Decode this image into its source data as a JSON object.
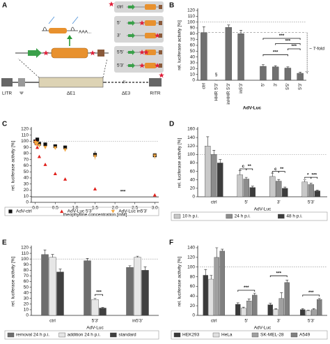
{
  "diagram": {
    "label": "A",
    "poly_a": "AAA...",
    "genome": [
      "LITR",
      "Ψ",
      "ΔE1",
      "ΔE3",
      "RITR"
    ],
    "constructs": [
      "ctrl",
      "5'",
      "3'",
      "5'5'",
      "5'3'"
    ]
  },
  "chart_data": [
    {
      "label": "B",
      "type": "bar",
      "y_label": "rel. luciferase activity [%]",
      "x_label": "AdV-Luc",
      "categories": [
        "ctrl",
        "HHR 5'3'",
        "inHHR 5'3'",
        "in5'3'",
        "5'",
        "3'",
        "5'5'",
        "5'3'"
      ],
      "series": [
        {
          "color": "#707070",
          "values": [
            82,
            0,
            91,
            80,
            24,
            23,
            21,
            12
          ],
          "errors": [
            10,
            0,
            4,
            6,
            3,
            2,
            2,
            2
          ]
        }
      ],
      "ylim": [
        0,
        120
      ],
      "yticks": [
        0,
        10,
        20,
        30,
        40,
        50,
        60,
        70,
        80,
        90,
        100,
        110,
        120
      ],
      "reference_lines": [
        100,
        82
      ],
      "annotations": [
        "§",
        "***",
        "***",
        "***",
        "***",
        "~ 7-fold"
      ]
    },
    {
      "label": "C",
      "type": "scatter",
      "y_label": "rel. luciferase activity [%]",
      "x_label": "theophylline concentration [mM]",
      "x": [
        0,
        0.025,
        0.05,
        0.1,
        0.25,
        0.5,
        0.75,
        1.5,
        3.0
      ],
      "series": [
        {
          "name": "AdV-ctrl",
          "color": "#111111",
          "marker": "square",
          "values": [
            100,
            98,
            103,
            96,
            95,
            92,
            90,
            78,
            77
          ],
          "errors": [
            3,
            3,
            3,
            3,
            3,
            3,
            3,
            6,
            4
          ]
        },
        {
          "name": "AdV-Luc 5'3'",
          "color": "#e0201b",
          "marker": "triangle",
          "values": [
            100,
            96,
            90,
            75,
            62,
            47,
            38,
            22,
            12
          ],
          "errors": [
            3,
            2,
            2,
            2,
            2,
            2,
            2,
            2,
            2
          ]
        },
        {
          "name": "AdV-Luc in5'3'",
          "color": "#f2a640",
          "marker": "triangle-down",
          "values": [
            98,
            95,
            97,
            93,
            90,
            89,
            86,
            75,
            76
          ],
          "errors": [
            4,
            3,
            3,
            3,
            3,
            3,
            3,
            5,
            5
          ]
        }
      ],
      "xlim": [
        -0.1,
        3.1
      ],
      "xticks": [
        {
          "value": 0,
          "label": "0.0"
        },
        0.5,
        {
          "value": 1,
          "label": "1.0"
        },
        1.5,
        {
          "value": 2,
          "label": "2.0"
        },
        2.5,
        {
          "value": 3,
          "label": "3.0"
        }
      ],
      "ylim": [
        0,
        120
      ],
      "yticks": [
        0,
        10,
        20,
        30,
        40,
        50,
        60,
        70,
        80,
        90,
        100,
        110,
        120
      ],
      "reference_lines": [
        100,
        9
      ],
      "annotations": [
        "***"
      ]
    },
    {
      "label": "D",
      "type": "bar",
      "y_label": "rel. luciferase activity [%]",
      "x_label": "AdV-Luc",
      "categories": [
        "ctrl",
        "5'",
        "3'",
        "5'3'"
      ],
      "series": [
        {
          "name": "10 h p.i.",
          "color": "#c8c8c8",
          "values": [
            120,
            52,
            48,
            35
          ],
          "errors": [
            22,
            10,
            8,
            5
          ]
        },
        {
          "name": "24 h p.i.",
          "color": "#8c8c8c",
          "values": [
            100,
            42,
            37,
            29
          ],
          "errors": [
            10,
            4,
            4,
            3
          ]
        },
        {
          "name": "48 h p.i.",
          "color": "#3c3c3c",
          "values": [
            80,
            22,
            20,
            14
          ],
          "errors": [
            8,
            3,
            3,
            2
          ]
        }
      ],
      "ylim": [
        0,
        160
      ],
      "yticks": [
        0,
        20,
        40,
        60,
        80,
        100,
        120,
        140,
        160
      ],
      "reference_lines": [
        100
      ],
      "annotations": [
        "c",
        "**",
        "c",
        "**",
        "*",
        "***"
      ]
    },
    {
      "label": "E",
      "type": "bar",
      "y_label": "rel. luciferase activity [%]",
      "x_label": "AdV-Luc",
      "categories": [
        "ctrl",
        "5'3'",
        "in5'3'"
      ],
      "series": [
        {
          "name": "removal 24 h p.i.",
          "color": "#6e6e6e",
          "values": [
            108,
            97,
            85
          ],
          "errors": [
            8,
            4,
            3
          ]
        },
        {
          "name": "addition 24 h p.i.",
          "color": "#e6e6e6",
          "values": [
            103,
            28,
            103
          ],
          "errors": [
            5,
            2,
            2
          ]
        },
        {
          "name": "standard",
          "color": "#404040",
          "values": [
            77,
            13,
            80
          ],
          "errors": [
            5,
            1,
            6
          ]
        }
      ],
      "ylim": [
        0,
        120
      ],
      "yticks": [
        0,
        10,
        20,
        30,
        40,
        50,
        60,
        70,
        80,
        90,
        100,
        110,
        120
      ],
      "reference_lines": [
        100
      ],
      "annotations": [
        "***"
      ]
    },
    {
      "label": "F",
      "type": "bar",
      "y_label": "rel. luciferase activity [%]",
      "x_label": "AdV-Luc",
      "categories": [
        "ctrl",
        "5'",
        "3'",
        "5'3'"
      ],
      "series": [
        {
          "name": "HEK293",
          "color": "#3a3a3a",
          "values": [
            83,
            23,
            22,
            12
          ],
          "errors": [
            12,
            3,
            3,
            2
          ]
        },
        {
          "name": "HeLa",
          "color": "#e0e0e0",
          "values": [
            75,
            15,
            12,
            10
          ],
          "errors": [
            8,
            2,
            2,
            1
          ]
        },
        {
          "name": "SK-MEL-28",
          "color": "#a0a0a0",
          "values": [
            120,
            30,
            35,
            12
          ],
          "errors": [
            20,
            4,
            12,
            2
          ]
        },
        {
          "name": "A549",
          "color": "#808080",
          "values": [
            133,
            42,
            68,
            33
          ],
          "errors": [
            4,
            4,
            5,
            2
          ]
        }
      ],
      "ylim": [
        0,
        140
      ],
      "yticks": [
        0,
        20,
        40,
        60,
        80,
        100,
        120,
        140
      ],
      "reference_lines": [
        100
      ],
      "annotations": [
        "***",
        "***",
        "***"
      ]
    }
  ]
}
